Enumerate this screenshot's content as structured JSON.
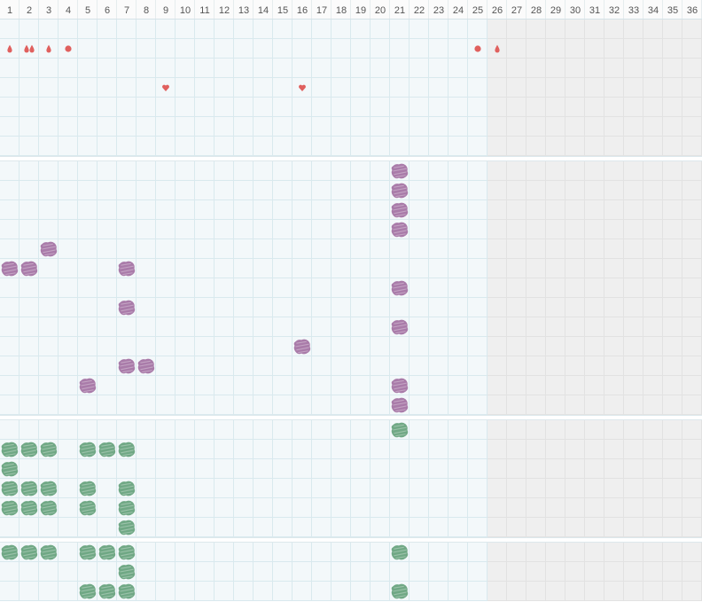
{
  "header": {
    "days": [
      1,
      2,
      3,
      4,
      5,
      6,
      7,
      8,
      9,
      10,
      11,
      12,
      13,
      14,
      15,
      16,
      17,
      18,
      19,
      20,
      21,
      22,
      23,
      24,
      25,
      26,
      27,
      28,
      29,
      30,
      31,
      32,
      33,
      34,
      35,
      36
    ]
  },
  "sections": [
    {
      "color": "#e0605e",
      "rows": [
        [],
        [
          {
            "day": 1,
            "icon": "drop"
          },
          {
            "day": 2,
            "icon": "double-drop"
          },
          {
            "day": 3,
            "icon": "drop"
          },
          {
            "day": 4,
            "icon": "dot"
          },
          {
            "day": 25,
            "icon": "dot"
          },
          {
            "day": 26,
            "icon": "drop"
          }
        ],
        [],
        [
          {
            "day": 9,
            "icon": "heart"
          },
          {
            "day": 16,
            "icon": "heart"
          }
        ],
        [],
        [],
        []
      ]
    },
    {
      "color": "#a97ba9",
      "rows": [
        [
          21
        ],
        [
          21
        ],
        [
          21
        ],
        [
          21
        ],
        [
          3
        ],
        [
          1,
          2,
          7
        ],
        [
          21
        ],
        [
          7
        ],
        [
          21
        ],
        [
          16
        ],
        [
          7,
          8
        ],
        [
          5,
          21
        ],
        [
          21
        ]
      ]
    },
    {
      "color": "#70a885",
      "rows": [
        [
          21
        ],
        [
          1,
          2,
          3,
          5,
          6,
          7
        ],
        [
          1
        ],
        [
          1,
          2,
          3,
          5,
          7
        ],
        [
          1,
          2,
          3,
          5,
          7
        ],
        [
          7
        ]
      ]
    },
    {
      "color": "#70a885",
      "rows": [
        [
          1,
          2,
          3,
          5,
          6,
          7,
          21
        ],
        [
          7
        ],
        [
          5,
          6,
          7,
          21
        ]
      ]
    }
  ]
}
